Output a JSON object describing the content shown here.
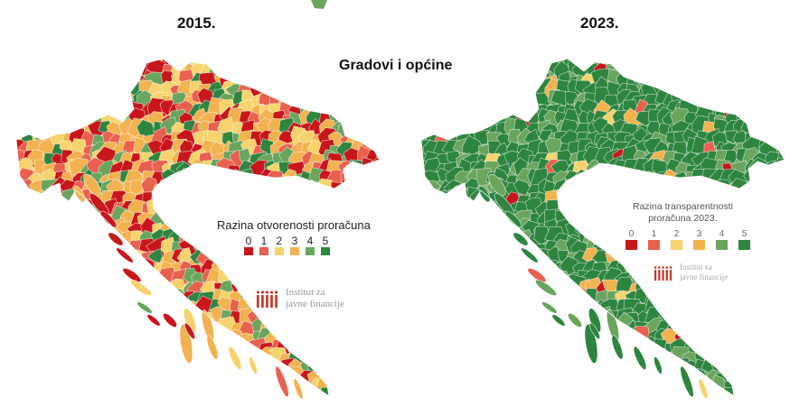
{
  "titles": {
    "left_year": "2015.",
    "right_year": "2023.",
    "main": "Gradovi i općine"
  },
  "legend_left": {
    "title": "Razina otvorenosti proračuna",
    "levels": [
      "0",
      "1",
      "2",
      "3",
      "4",
      "5"
    ],
    "colors": [
      "#c8171c",
      "#e8614e",
      "#f6d36c",
      "#f2b24f",
      "#6aa55d",
      "#2e8540"
    ]
  },
  "legend_right": {
    "title_line1": "Razina transparentnosti",
    "title_line2": "proračuna 2023.",
    "levels": [
      "0",
      "1",
      "2",
      "3",
      "4",
      "5"
    ],
    "colors": [
      "#c8171c",
      "#e8614e",
      "#f6d36c",
      "#f2b24f",
      "#6aa55d",
      "#2e8540"
    ]
  },
  "logo": {
    "line1": "Institut za",
    "line2": "javne financije",
    "color": "#c0392b"
  },
  "map_colors": {
    "left_distribution": [
      0.25,
      0.14,
      0.12,
      0.27,
      0.13,
      0.09
    ],
    "right_distribution": [
      0.01,
      0.02,
      0.02,
      0.05,
      0.15,
      0.75
    ]
  }
}
